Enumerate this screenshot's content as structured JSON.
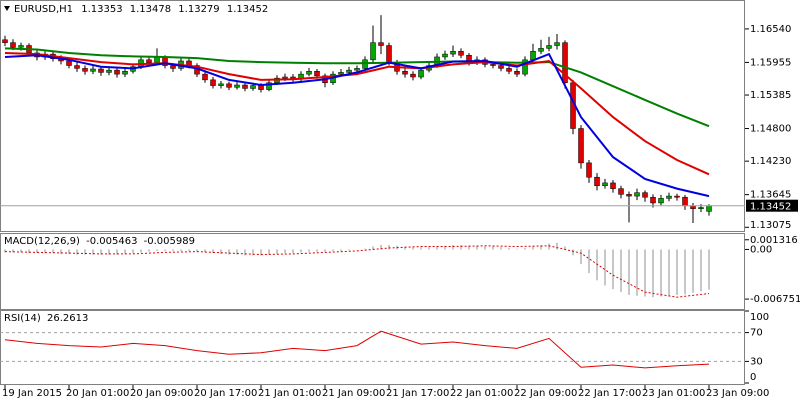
{
  "chart_data": [
    {
      "type": "candlestick",
      "title": "EURUSD,H1",
      "categories": [
        "19 Jan 2015",
        null,
        null,
        null,
        null,
        null,
        null,
        null,
        "20 Jan 01:00",
        null,
        null,
        null,
        null,
        null,
        null,
        null,
        "20 Jan 09:00",
        null,
        null,
        null,
        null,
        null,
        null,
        null,
        "20 Jan 17:00",
        null,
        null,
        null,
        null,
        null,
        null,
        null,
        "21 Jan 01:00",
        null,
        null,
        null,
        null,
        null,
        null,
        null,
        "21 Jan 09:00",
        null,
        null,
        null,
        null,
        null,
        null,
        null,
        "21 Jan 17:00",
        null,
        null,
        null,
        null,
        null,
        null,
        null,
        "22 Jan 01:00",
        null,
        null,
        null,
        null,
        null,
        null,
        null,
        "22 Jan 09:00",
        null,
        null,
        null,
        null,
        null,
        null,
        null,
        "22 Jan 17:00",
        null,
        null,
        null,
        null,
        null,
        null,
        null,
        "23 Jan 01:00",
        null,
        null,
        null,
        null,
        null,
        null,
        null,
        "23 Jan 09:00"
      ],
      "open": [
        1.1635,
        1.163,
        1.1622,
        1.1625,
        1.1612,
        1.1605,
        1.161,
        1.1602,
        1.1598,
        1.159,
        1.1585,
        1.158,
        1.1584,
        1.1578,
        1.1582,
        1.1575,
        1.158,
        1.1588,
        1.16,
        1.1595,
        1.1605,
        1.159,
        1.1585,
        1.1598,
        1.159,
        1.1575,
        1.1565,
        1.1555,
        1.1558,
        1.1552,
        1.1556,
        1.155,
        1.1555,
        1.1548,
        1.156,
        1.1568,
        1.157,
        1.1566,
        1.1575,
        1.158,
        1.1572,
        1.156,
        1.1575,
        1.1578,
        1.1582,
        1.1585,
        1.16,
        1.163,
        1.1625,
        1.1595,
        1.158,
        1.1575,
        1.157,
        1.1582,
        1.159,
        1.1605,
        1.161,
        1.1615,
        1.1608,
        1.1595,
        1.16,
        1.1592,
        1.159,
        1.1585,
        1.158,
        1.1575,
        1.16,
        1.1615,
        1.162,
        1.1625,
        1.163,
        1.156,
        1.148,
        1.142,
        1.1395,
        1.138,
        1.1385,
        1.1375,
        1.1365,
        1.1362,
        1.1368,
        1.136,
        1.135,
        1.1358,
        1.1362,
        1.136,
        1.1345,
        1.134,
        1.13353
      ],
      "high": [
        1.1642,
        1.1636,
        1.163,
        1.1629,
        1.1617,
        1.1616,
        1.1615,
        1.1608,
        1.1603,
        1.1596,
        1.159,
        1.159,
        1.1588,
        1.1587,
        1.1586,
        1.1586,
        1.1593,
        1.1606,
        1.1604,
        1.162,
        1.1608,
        1.1594,
        1.1603,
        1.1602,
        1.1594,
        1.1579,
        1.157,
        1.1563,
        1.1562,
        1.1561,
        1.156,
        1.156,
        1.1559,
        1.1565,
        1.1573,
        1.1576,
        1.1575,
        1.158,
        1.1586,
        1.1584,
        1.1576,
        1.158,
        1.1584,
        1.1588,
        1.159,
        1.1606,
        1.166,
        1.1678,
        1.163,
        1.16,
        1.1585,
        1.158,
        1.1587,
        1.1596,
        1.1611,
        1.1616,
        1.1625,
        1.162,
        1.1612,
        1.1606,
        1.1604,
        1.1597,
        1.1595,
        1.159,
        1.1585,
        1.1606,
        1.1628,
        1.1635,
        1.164,
        1.1645,
        1.1634,
        1.1565,
        1.1486,
        1.1425,
        1.1402,
        1.1392,
        1.139,
        1.138,
        1.137,
        1.1375,
        1.1372,
        1.1365,
        1.1364,
        1.1368,
        1.1366,
        1.1364,
        1.135,
        1.1348,
        1.13478
      ],
      "low": [
        1.1624,
        1.1617,
        1.1616,
        1.1607,
        1.1599,
        1.16,
        1.1597,
        1.1592,
        1.1585,
        1.1579,
        1.1574,
        1.1575,
        1.1572,
        1.1573,
        1.1569,
        1.157,
        1.1576,
        1.1584,
        1.159,
        1.1591,
        1.1585,
        1.1579,
        1.1581,
        1.1585,
        1.157,
        1.156,
        1.155,
        1.155,
        1.1547,
        1.1548,
        1.1545,
        1.1546,
        1.1543,
        1.1545,
        1.1556,
        1.1563,
        1.1561,
        1.1562,
        1.1571,
        1.1567,
        1.1552,
        1.1556,
        1.1571,
        1.1574,
        1.1578,
        1.158,
        1.1596,
        1.161,
        1.159,
        1.1574,
        1.1569,
        1.1564,
        1.1566,
        1.1578,
        1.1586,
        1.16,
        1.1605,
        1.1603,
        1.159,
        1.1591,
        1.1587,
        1.1585,
        1.158,
        1.1575,
        1.157,
        1.1571,
        1.1596,
        1.161,
        1.1615,
        1.1618,
        1.155,
        1.147,
        1.141,
        1.1385,
        1.1372,
        1.1375,
        1.1368,
        1.1358,
        1.1316,
        1.1355,
        1.1352,
        1.1342,
        1.1346,
        1.1353,
        1.1354,
        1.1338,
        1.1315,
        1.1334,
        1.13279
      ],
      "close": [
        1.163,
        1.1622,
        1.1625,
        1.1612,
        1.1605,
        1.161,
        1.1602,
        1.1598,
        1.159,
        1.1585,
        1.158,
        1.1584,
        1.1578,
        1.1582,
        1.1575,
        1.158,
        1.1588,
        1.16,
        1.1595,
        1.1605,
        1.159,
        1.1585,
        1.1598,
        1.159,
        1.1575,
        1.1565,
        1.1555,
        1.1558,
        1.1552,
        1.1556,
        1.155,
        1.1555,
        1.1548,
        1.156,
        1.1568,
        1.157,
        1.1566,
        1.1575,
        1.158,
        1.1572,
        1.156,
        1.1575,
        1.1578,
        1.1582,
        1.1585,
        1.16,
        1.163,
        1.1625,
        1.1595,
        1.158,
        1.1575,
        1.157,
        1.1582,
        1.159,
        1.1605,
        1.161,
        1.1615,
        1.1608,
        1.1595,
        1.16,
        1.1592,
        1.159,
        1.1585,
        1.158,
        1.1575,
        1.16,
        1.1615,
        1.162,
        1.1625,
        1.163,
        1.156,
        1.148,
        1.142,
        1.1395,
        1.138,
        1.1385,
        1.1375,
        1.1365,
        1.1362,
        1.1368,
        1.136,
        1.135,
        1.1358,
        1.1362,
        1.136,
        1.1345,
        1.134,
        1.1342,
        1.13452
      ],
      "up_color": "#00a800",
      "down_color": "#e00000",
      "series": [
        {
          "color": "#008000",
          "x": [
            0,
            4,
            8,
            12,
            16,
            20,
            24,
            28,
            32,
            36,
            40,
            44,
            48,
            52,
            56,
            60,
            64,
            68,
            72,
            76,
            80,
            84,
            88
          ],
          "values": [
            1.162,
            1.1618,
            1.1612,
            1.1608,
            1.1606,
            1.1605,
            1.1603,
            1.1598,
            1.1596,
            1.1595,
            1.1594,
            1.1594,
            1.1595,
            1.1596,
            1.1597,
            1.1596,
            1.1595,
            1.1596,
            1.1578,
            1.1554,
            1.153,
            1.1506,
            1.1484
          ]
        },
        {
          "color": "#e00000",
          "x": [
            0,
            4,
            8,
            12,
            16,
            20,
            24,
            28,
            32,
            36,
            40,
            44,
            48,
            52,
            56,
            60,
            64,
            68,
            72,
            76,
            80,
            84,
            88
          ],
          "values": [
            1.1612,
            1.161,
            1.1603,
            1.1596,
            1.1592,
            1.1594,
            1.1588,
            1.1575,
            1.1565,
            1.1566,
            1.157,
            1.1575,
            1.1588,
            1.1585,
            1.1592,
            1.1596,
            1.159,
            1.1598,
            1.155,
            1.15,
            1.1458,
            1.1425,
            1.14
          ]
        },
        {
          "color": "#0000e0",
          "x": [
            0,
            4,
            8,
            12,
            16,
            20,
            24,
            28,
            32,
            36,
            40,
            44,
            48,
            52,
            56,
            60,
            64,
            68,
            72,
            76,
            80,
            84,
            88
          ],
          "values": [
            1.1605,
            1.1608,
            1.16,
            1.1588,
            1.1585,
            1.1594,
            1.1585,
            1.1565,
            1.1556,
            1.156,
            1.1566,
            1.1578,
            1.1595,
            1.1585,
            1.1597,
            1.1598,
            1.1588,
            1.161,
            1.15,
            1.143,
            1.1392,
            1.1375,
            1.1362
          ]
        }
      ],
      "ylim": [
        1.1301,
        1.1701
      ],
      "yticks": [
        {
          "value": 1.1654,
          "label": "1.16540"
        },
        1.15955,
        1.15385,
        {
          "value": 1.148,
          "label": "1.14800"
        },
        {
          "value": 1.1423,
          "label": "1.14230"
        },
        1.13645,
        1.13075
      ]
    },
    {
      "type": "bar",
      "title": "MACD(12,26,9)",
      "series": [
        {
          "style": "bar",
          "color": "#b4b4b4",
          "values": [
            -0.0004,
            -0.0004,
            -0.0004,
            -0.0005,
            -0.0005,
            -0.0005,
            -0.0005,
            -0.0006,
            -0.0006,
            -0.0007,
            -0.0007,
            -0.0007,
            -0.0007,
            -0.0007,
            -0.0007,
            -0.0006,
            -0.0005,
            -0.0004,
            -0.0003,
            -0.0002,
            -0.0002,
            -0.0002,
            -0.0002,
            -0.0002,
            -0.0003,
            -0.0004,
            -0.0005,
            -0.0006,
            -0.0007,
            -0.0007,
            -0.0008,
            -0.0008,
            -0.0008,
            -0.0007,
            -0.0006,
            -0.0005,
            -0.0005,
            -0.0004,
            -0.0003,
            -0.0003,
            -0.0003,
            -0.0002,
            -0.0002,
            -0.0001,
            0.0,
            0.0001,
            0.0004,
            0.0006,
            0.0006,
            0.0005,
            0.0004,
            0.0003,
            0.0003,
            0.0003,
            0.0004,
            0.0005,
            0.0006,
            0.0006,
            0.0005,
            0.0005,
            0.0004,
            0.0004,
            0.0003,
            0.0002,
            0.0001,
            0.0002,
            0.0004,
            0.0006,
            0.0008,
            0.0009,
            0.0004,
            -0.0008,
            -0.002,
            -0.0032,
            -0.0042,
            -0.0049,
            -0.0054,
            -0.0058,
            -0.0062,
            -0.0063,
            -0.0064,
            -0.0065,
            -0.0064,
            -0.0063,
            -0.0062,
            -0.0061,
            -0.0059,
            -0.0057,
            -0.005463
          ]
        },
        {
          "style": "dotted",
          "color": "#e00000",
          "x": [
            0,
            4,
            8,
            12,
            16,
            20,
            24,
            28,
            32,
            36,
            40,
            44,
            48,
            52,
            56,
            60,
            64,
            68,
            72,
            76,
            80,
            84,
            88
          ],
          "values": [
            -0.0003,
            -0.0004,
            -0.0005,
            -0.0006,
            -0.0006,
            -0.0004,
            -0.0003,
            -0.0005,
            -0.0007,
            -0.0006,
            -0.0004,
            -0.0002,
            0.0002,
            0.0004,
            0.0004,
            0.0005,
            0.0004,
            0.0005,
            -0.0005,
            -0.0035,
            -0.0058,
            -0.0065,
            -0.005989
          ]
        }
      ],
      "ylim": [
        -0.0081,
        0.0021
      ],
      "yticks": [
        0.001316,
        {
          "value": 0,
          "label": "0.00"
        },
        -0.006751
      ]
    },
    {
      "type": "line",
      "title": "RSI(14)",
      "grid": true,
      "series": [
        {
          "color": "#e00000",
          "x": [
            0,
            4,
            8,
            12,
            16,
            20,
            24,
            28,
            32,
            36,
            40,
            44,
            47,
            52,
            56,
            60,
            64,
            68,
            72,
            76,
            80,
            84,
            88
          ],
          "values": [
            60,
            55,
            52,
            50,
            55,
            52,
            45,
            40,
            42,
            48,
            45,
            52,
            72,
            54,
            57,
            52,
            48,
            62,
            22,
            25,
            21,
            24,
            26.2613
          ]
        }
      ],
      "ylim": [
        0,
        100
      ],
      "yticks": [
        100,
        70,
        30,
        0
      ]
    }
  ]
}
